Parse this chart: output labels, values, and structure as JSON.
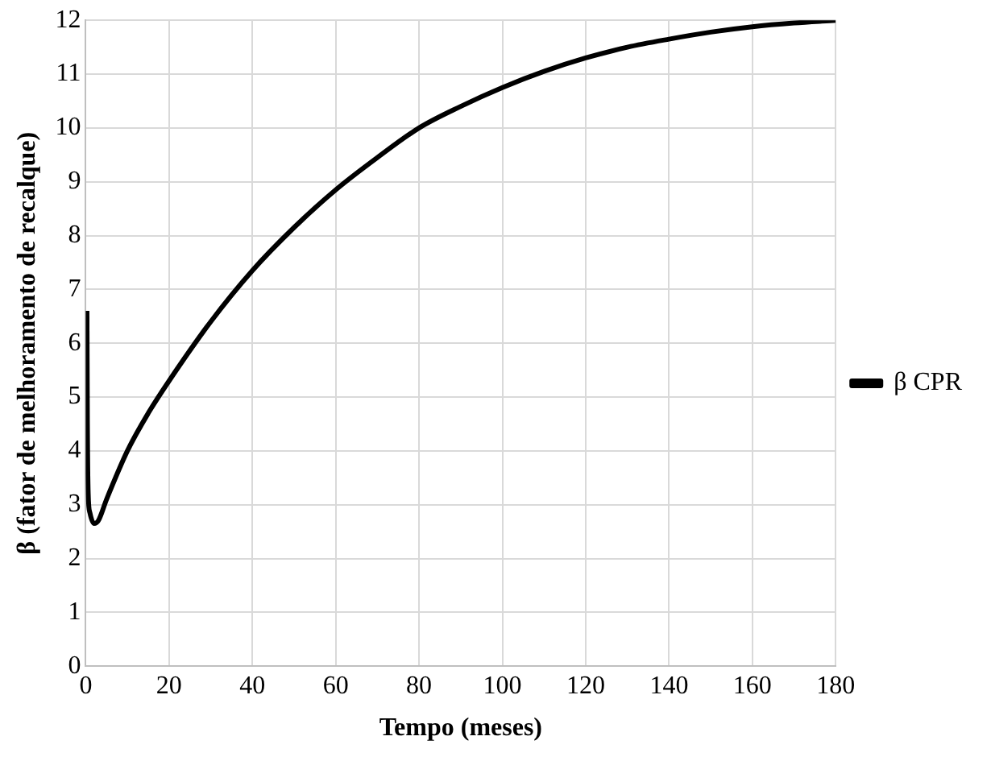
{
  "chart_data": {
    "type": "line",
    "xlabel": "Tempo (meses)",
    "ylabel": "β (fator de melhoramento de recalque)",
    "x": [
      0.3,
      0.4,
      0.6,
      1,
      2,
      3,
      5,
      10,
      15,
      20,
      30,
      40,
      50,
      60,
      70,
      80,
      90,
      100,
      110,
      120,
      130,
      140,
      150,
      160,
      170,
      180
    ],
    "series": [
      {
        "name": "β CPR",
        "color": "#000000",
        "values": [
          6.6,
          4.5,
          3.2,
          2.85,
          2.65,
          2.7,
          3.1,
          4.0,
          4.7,
          5.3,
          6.4,
          7.35,
          8.15,
          8.85,
          9.45,
          10.0,
          10.4,
          10.75,
          11.05,
          11.3,
          11.5,
          11.65,
          11.78,
          11.88,
          11.95,
          12.0
        ]
      }
    ],
    "xlim": [
      0,
      180
    ],
    "xticks": [
      0,
      20,
      40,
      60,
      80,
      100,
      120,
      140,
      160,
      180
    ],
    "ylim": [
      0,
      12
    ],
    "yticks": [
      0,
      1,
      2,
      3,
      4,
      5,
      6,
      7,
      8,
      9,
      10,
      11,
      12
    ],
    "grid": true,
    "legend": "right",
    "marker": "none",
    "line_style": "solid"
  }
}
